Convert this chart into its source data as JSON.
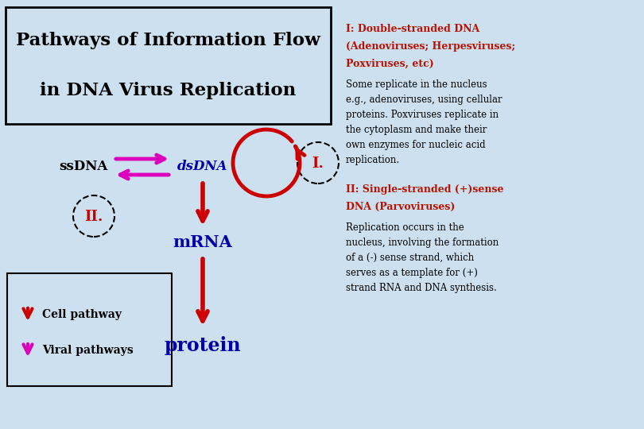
{
  "bg_color": "#cce0f0",
  "title_line1": "Pathways of Information Flow",
  "title_line2": "in DNA Virus Replication",
  "title_fontsize": 16,
  "title_color": "#000000",
  "label_ssDNA": "ssDNA",
  "label_dsDNA": "dsDNA",
  "label_mRNA": "mRNA",
  "label_protein": "protein",
  "label_I": "I.",
  "label_II": "II.",
  "red": "#cc0000",
  "magenta": "#dd00bb",
  "blue": "#0000aa",
  "dark_red": "#330000",
  "text_red": "#bb1100",
  "black": "#000000",
  "legend_cell": "Cell pathway",
  "legend_viral": "Viral pathways",
  "right_text_1_bold_1": "I: Double-stranded DNA",
  "right_text_1_bold_2": "(Adenoviruses; Herpesviruses;",
  "right_text_1_bold_3": "Poxviruses, etc)",
  "right_text_1_normal": "Some replicate in the nucleus\ne.g., adenoviruses, using cellular\nproteins. Poxviruses replicate in\nthe cytoplasm and make their\nown enzymes for nucleic acid\nreplication.",
  "right_text_2_bold_1": "II: Single-stranded (+)sense",
  "right_text_2_bold_2": "DNA (Parvoviruses)",
  "right_text_2_normal": "Replication occurs in the\nnucleus, involving the formation\nof a (-) sense strand, which\nserves as a template for (+)\nstrand RNA and DNA synthesis."
}
